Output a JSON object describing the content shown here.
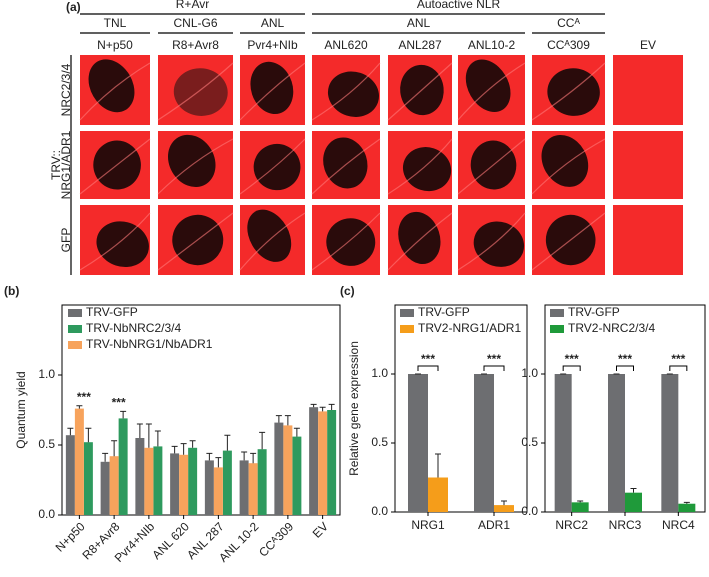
{
  "panel_a": {
    "label": "(a)",
    "header_groups": [
      "R+Avr",
      "Autoactive NLR"
    ],
    "subgroups": [
      "TNL",
      "CNL-G6",
      "ANL",
      "ANL",
      "CCᴬ"
    ],
    "columns": [
      "N+p50",
      "R8+Avr8",
      "Pvr4+NIb",
      "ANL620",
      "ANL287",
      "ANL10-2",
      "CCᴬ309",
      "EV"
    ],
    "row_prefix": "TRV::",
    "rows": [
      "NRC2/3/4",
      "NRG1/ADR1",
      "GFP"
    ]
  },
  "chart_data": [
    {
      "type": "bar",
      "panel": "(b)",
      "y_label": "Quantum yield",
      "categories": [
        "N+p50",
        "R8+Avr8",
        "Pvr4+NIb",
        "ANL 620",
        "ANL 287",
        "ANL 10-2",
        "CCᴬ309",
        "EV"
      ],
      "series": [
        {
          "name": "TRV-GFP",
          "color": "#6d6e71",
          "values": [
            0.57,
            0.38,
            0.55,
            0.44,
            0.39,
            0.39,
            0.66,
            0.77
          ],
          "errors": [
            0.05,
            0.06,
            0.1,
            0.05,
            0.05,
            0.06,
            0.05,
            0.02
          ]
        },
        {
          "name": "TRV-NbNRC2/3/4",
          "color": "#2e9a5e",
          "values": [
            0.52,
            0.69,
            0.49,
            0.48,
            0.46,
            0.47,
            0.56,
            0.75
          ],
          "errors": [
            0.1,
            0.05,
            0.11,
            0.05,
            0.11,
            0.12,
            0.06,
            0.04
          ]
        },
        {
          "name": "TRV-NbNRG1/NbADR1",
          "color": "#f7a35c",
          "values": [
            0.76,
            0.42,
            0.48,
            0.43,
            0.34,
            0.37,
            0.64,
            0.74
          ],
          "errors": [
            0.02,
            0.11,
            0.17,
            0.08,
            0.07,
            0.07,
            0.07,
            0.03
          ]
        }
      ],
      "annotations": [
        "***",
        "***"
      ],
      "ylim": [
        0,
        1.5
      ],
      "yticks": [
        {
          "value": 0,
          "label": "0.0"
        },
        0.5,
        {
          "value": 1,
          "label": "1.0"
        }
      ]
    },
    {
      "type": "bar",
      "panel": "(c)",
      "y_label": "Relative gene expression",
      "categories": [
        "NRG1",
        "ADR1"
      ],
      "series": [
        {
          "name": "TRV-GFP",
          "color": "#6d6e71",
          "values": [
            1,
            1
          ],
          "errors": [
            0,
            0
          ]
        },
        {
          "name": "TRV2-NRG1/ADR1",
          "color": "#f59d1a",
          "values": [
            0.25,
            0.05
          ],
          "errors": [
            0.17,
            0.03
          ]
        }
      ],
      "annotations": [
        "***",
        "***"
      ],
      "ylim": [
        0,
        1.5
      ],
      "yticks": [
        {
          "value": 0,
          "label": "0.0"
        },
        0.5,
        {
          "value": 1,
          "label": "1.0"
        }
      ]
    },
    {
      "type": "bar",
      "categories": [
        "NRC2",
        "NRC3",
        "NRC4"
      ],
      "series": [
        {
          "name": "TRV-GFP",
          "color": "#6d6e71",
          "values": [
            1,
            1,
            1
          ],
          "errors": [
            0,
            0,
            0
          ]
        },
        {
          "name": "TRV2-NRC2/3/4",
          "color": "#1f9a3a",
          "values": [
            0.07,
            0.14,
            0.06
          ],
          "errors": [
            0.01,
            0.03,
            0.01
          ]
        }
      ],
      "annotations": [
        "***",
        "***",
        "***"
      ],
      "ylim": [
        0,
        1.5
      ],
      "yticks": [
        {
          "value": 0,
          "label": "0.0"
        },
        0.5,
        {
          "value": 1,
          "label": "1.0"
        }
      ]
    }
  ]
}
